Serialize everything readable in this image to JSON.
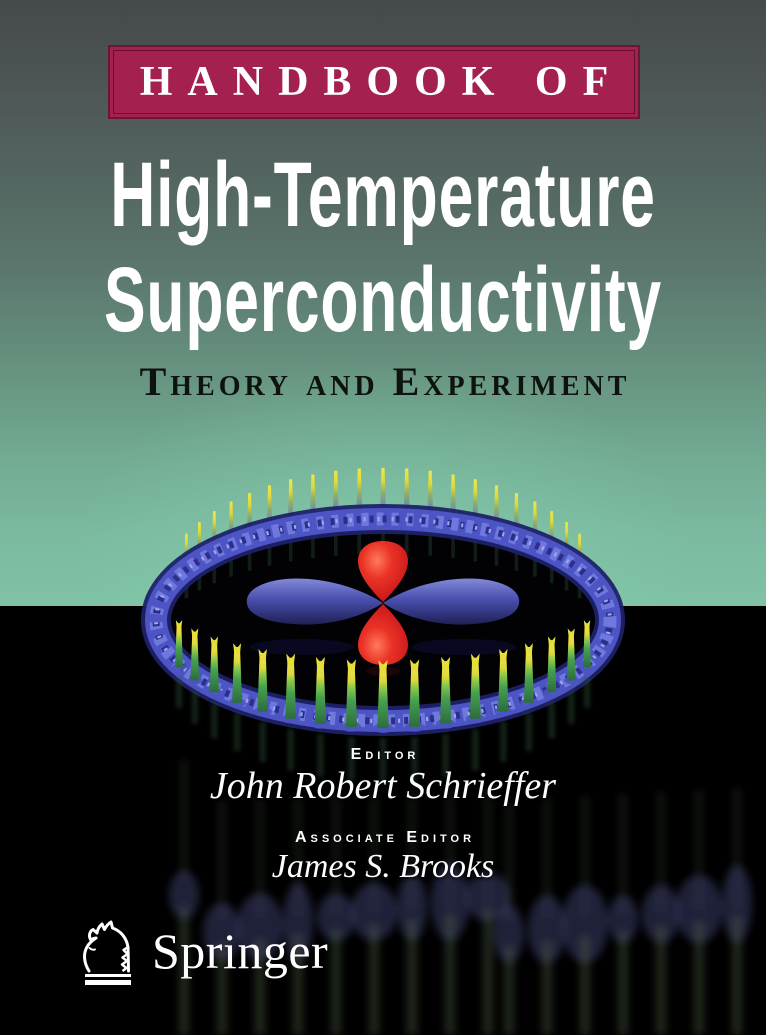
{
  "cover": {
    "series_banner": "HANDBOOK OF",
    "title_line1": "High-Temperature",
    "title_line2": "Superconductivity",
    "subtitle": "Theory and Experiment",
    "editor_label": "Editor",
    "editor_name": "John Robert Schrieffer",
    "associate_editor_label": "Associate Editor",
    "associate_editor_name": "James S. Brooks",
    "publisher": "Springer",
    "artwork_name": "quantum-corral-with-d-wave-orbital"
  },
  "colors": {
    "banner_background": "#a32051",
    "banner_border": "#6e1537",
    "background_top": "#45494a",
    "background_green": "#80c2a6",
    "floor_black": "#000000",
    "title_text": "#ffffff",
    "subtitle_text": "#0e130f",
    "ring_blue": "#4d55c4",
    "spike_yellow": "#e6df3a",
    "spike_green": "#47a04e",
    "orbital_blue": "#4a4fae",
    "orbital_red": "#e22621"
  }
}
